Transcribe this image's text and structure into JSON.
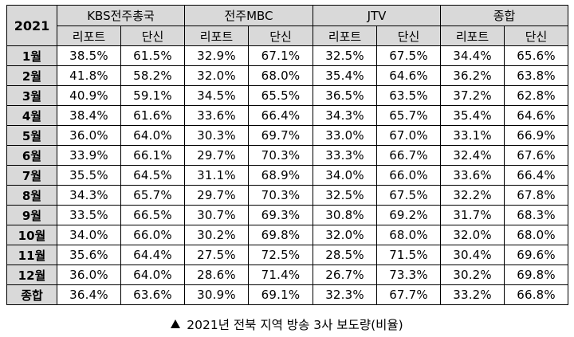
{
  "table": {
    "corner": "2021",
    "groups": [
      "KBS전주총국",
      "전주MBC",
      "JTV",
      "종합"
    ],
    "subheaders": [
      "리포트",
      "단신"
    ],
    "rows": [
      {
        "label": "1월",
        "values": [
          "38.5%",
          "61.5%",
          "32.9%",
          "67.1%",
          "32.5%",
          "67.5%",
          "34.4%",
          "65.6%"
        ]
      },
      {
        "label": "2월",
        "values": [
          "41.8%",
          "58.2%",
          "32.0%",
          "68.0%",
          "35.4%",
          "64.6%",
          "36.2%",
          "63.8%"
        ]
      },
      {
        "label": "3월",
        "values": [
          "40.9%",
          "59.1%",
          "34.5%",
          "65.5%",
          "36.5%",
          "63.5%",
          "37.2%",
          "62.8%"
        ]
      },
      {
        "label": "4월",
        "values": [
          "38.4%",
          "61.6%",
          "33.6%",
          "66.4%",
          "34.3%",
          "65.7%",
          "35.4%",
          "64.6%"
        ]
      },
      {
        "label": "5월",
        "values": [
          "36.0%",
          "64.0%",
          "30.3%",
          "69.7%",
          "33.0%",
          "67.0%",
          "33.1%",
          "66.9%"
        ]
      },
      {
        "label": "6월",
        "values": [
          "33.9%",
          "66.1%",
          "29.7%",
          "70.3%",
          "33.3%",
          "66.7%",
          "32.4%",
          "67.6%"
        ]
      },
      {
        "label": "7월",
        "values": [
          "35.5%",
          "64.5%",
          "31.1%",
          "68.9%",
          "34.0%",
          "66.0%",
          "33.6%",
          "66.4%"
        ]
      },
      {
        "label": "8월",
        "values": [
          "34.3%",
          "65.7%",
          "29.7%",
          "70.3%",
          "32.5%",
          "67.5%",
          "32.2%",
          "67.8%"
        ]
      },
      {
        "label": "9월",
        "values": [
          "33.5%",
          "66.5%",
          "30.7%",
          "69.3%",
          "30.8%",
          "69.2%",
          "31.7%",
          "68.3%"
        ]
      },
      {
        "label": "10월",
        "values": [
          "34.0%",
          "66.0%",
          "30.2%",
          "69.8%",
          "32.0%",
          "68.0%",
          "32.0%",
          "68.0%"
        ]
      },
      {
        "label": "11월",
        "values": [
          "35.6%",
          "64.4%",
          "27.5%",
          "72.5%",
          "28.5%",
          "71.5%",
          "30.4%",
          "69.6%"
        ]
      },
      {
        "label": "12월",
        "values": [
          "36.0%",
          "64.0%",
          "28.6%",
          "71.4%",
          "26.7%",
          "73.3%",
          "30.2%",
          "69.8%"
        ]
      },
      {
        "label": "종합",
        "values": [
          "36.4%",
          "63.6%",
          "30.9%",
          "69.1%",
          "32.3%",
          "67.7%",
          "33.2%",
          "66.8%"
        ]
      }
    ]
  },
  "caption": {
    "icon": "up-triangle-icon",
    "text": "2021년 전북 지역 방송 3사 보도량(비율)"
  },
  "colors": {
    "header_bg": "#d9d9d9",
    "border": "#000000"
  }
}
